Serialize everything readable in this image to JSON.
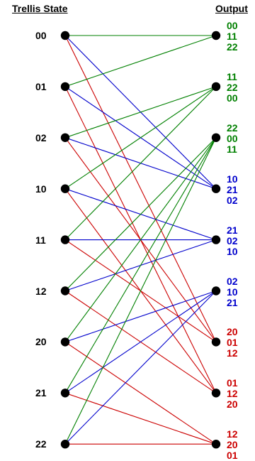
{
  "headers": {
    "left": "Trellis State",
    "right": "Output"
  },
  "states": [
    "00",
    "01",
    "02",
    "10",
    "11",
    "12",
    "20",
    "21",
    "22"
  ],
  "colors": {
    "green": "#008000",
    "blue": "#0000cc",
    "red": "#cc0000",
    "node": "#000000"
  },
  "outputs": [
    {
      "color": "green",
      "values": [
        "00",
        "11",
        "22"
      ]
    },
    {
      "color": "green",
      "values": [
        "11",
        "22",
        "00"
      ]
    },
    {
      "color": "green",
      "values": [
        "22",
        "00",
        "11"
      ]
    },
    {
      "color": "blue",
      "values": [
        "10",
        "21",
        "02"
      ]
    },
    {
      "color": "blue",
      "values": [
        "21",
        "02",
        "10"
      ]
    },
    {
      "color": "blue",
      "values": [
        "02",
        "10",
        "21"
      ]
    },
    {
      "color": "red",
      "values": [
        "20",
        "01",
        "12"
      ]
    },
    {
      "color": "red",
      "values": [
        "01",
        "12",
        "20"
      ]
    },
    {
      "color": "red",
      "values": [
        "12",
        "20",
        "01"
      ]
    }
  ],
  "transitions": [
    {
      "from": 0,
      "to": 0,
      "color": "green"
    },
    {
      "from": 0,
      "to": 3,
      "color": "blue"
    },
    {
      "from": 0,
      "to": 6,
      "color": "red"
    },
    {
      "from": 1,
      "to": 0,
      "color": "green"
    },
    {
      "from": 1,
      "to": 3,
      "color": "blue"
    },
    {
      "from": 1,
      "to": 7,
      "color": "red"
    },
    {
      "from": 2,
      "to": 1,
      "color": "green"
    },
    {
      "from": 2,
      "to": 3,
      "color": "blue"
    },
    {
      "from": 2,
      "to": 6,
      "color": "red"
    },
    {
      "from": 3,
      "to": 1,
      "color": "green"
    },
    {
      "from": 3,
      "to": 4,
      "color": "blue"
    },
    {
      "from": 3,
      "to": 7,
      "color": "red"
    },
    {
      "from": 4,
      "to": 1,
      "color": "green"
    },
    {
      "from": 4,
      "to": 4,
      "color": "blue"
    },
    {
      "from": 4,
      "to": 6,
      "color": "red"
    },
    {
      "from": 5,
      "to": 2,
      "color": "green"
    },
    {
      "from": 5,
      "to": 4,
      "color": "blue"
    },
    {
      "from": 5,
      "to": 7,
      "color": "red"
    },
    {
      "from": 6,
      "to": 2,
      "color": "green"
    },
    {
      "from": 6,
      "to": 5,
      "color": "blue"
    },
    {
      "from": 6,
      "to": 8,
      "color": "red"
    },
    {
      "from": 7,
      "to": 2,
      "color": "green"
    },
    {
      "from": 7,
      "to": 5,
      "color": "blue"
    },
    {
      "from": 7,
      "to": 8,
      "color": "red"
    },
    {
      "from": 8,
      "to": 2,
      "color": "green"
    },
    {
      "from": 8,
      "to": 5,
      "color": "blue"
    },
    {
      "from": 8,
      "to": 8,
      "color": "red"
    }
  ]
}
